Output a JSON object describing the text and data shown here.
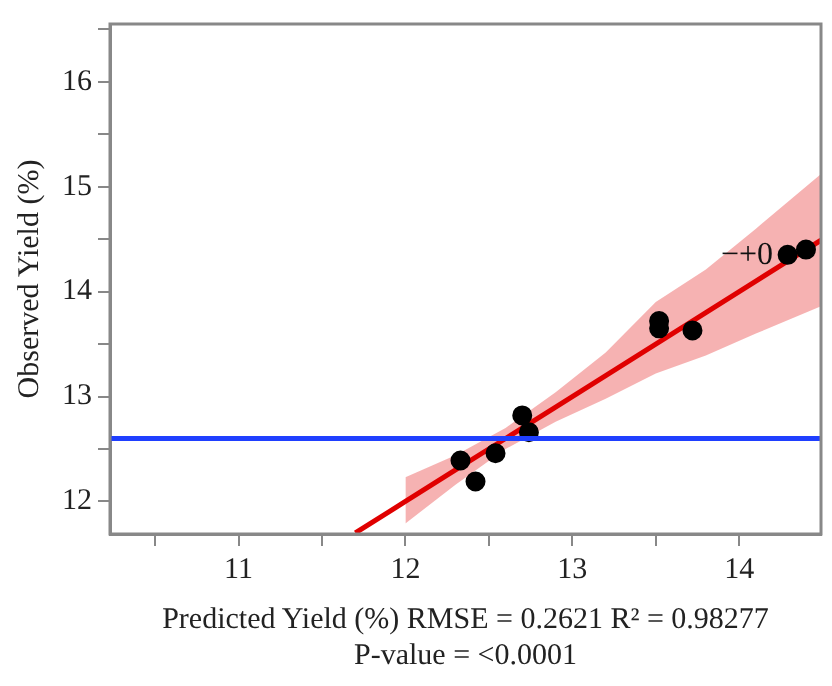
{
  "chart_data": {
    "type": "scatter",
    "xlabel": "Predicted Yield (%) RMSE = 0.2621 R² = 0.98277\nP-value = <0.0001",
    "ylabel": "Observed Yield (%)",
    "xlim": [
      10.23,
      14.49
    ],
    "ylim": [
      11.69,
      16.55
    ],
    "xticks": [
      {
        "value": 10.5,
        "label": null
      },
      11,
      {
        "value": 11.5,
        "label": null
      },
      12,
      {
        "value": 12.5,
        "label": null
      },
      13,
      {
        "value": 13.5,
        "label": null
      },
      14
    ],
    "yticks": [
      12,
      {
        "value": 12.5,
        "label": null
      },
      13,
      {
        "value": 13.5,
        "label": null
      },
      14,
      {
        "value": 14.5,
        "label": null
      },
      15,
      {
        "value": 15.5,
        "label": null
      },
      16,
      {
        "value": 16.5,
        "label": null
      }
    ],
    "grid": false,
    "legend": false,
    "marker": "circle",
    "series": [
      {
        "type": "line",
        "color": "#e00000",
        "x": [
          11.7,
          12.0,
          12.3,
          12.6,
          12.9,
          13.2,
          13.5,
          13.8,
          14.1,
          14.49
        ],
        "values": [
          11.7,
          12.0,
          12.3,
          12.6,
          12.9,
          13.2,
          13.5,
          13.8,
          14.1,
          14.49
        ],
        "lower": [
          null,
          11.79,
          12.16,
          12.5,
          12.76,
          12.98,
          13.22,
          13.39,
          13.6,
          13.86
        ],
        "upper": [
          null,
          12.23,
          12.44,
          12.7,
          13.04,
          13.42,
          13.9,
          14.21,
          14.6,
          15.12
        ],
        "marker": "none"
      },
      {
        "type": "scatter",
        "color": "#000000",
        "x": [
          12.33,
          12.42,
          12.54,
          12.7,
          12.74,
          13.52,
          13.52,
          13.72,
          14.29,
          14.4
        ],
        "values": [
          12.39,
          12.19,
          12.46,
          12.82,
          12.66,
          13.72,
          13.65,
          13.63,
          14.35,
          14.4
        ]
      }
    ],
    "ref_lines": [
      {
        "axis": "y",
        "value": 12.6,
        "color": "#1f3fff"
      }
    ],
    "annotations": [
      "−+0"
    ]
  }
}
